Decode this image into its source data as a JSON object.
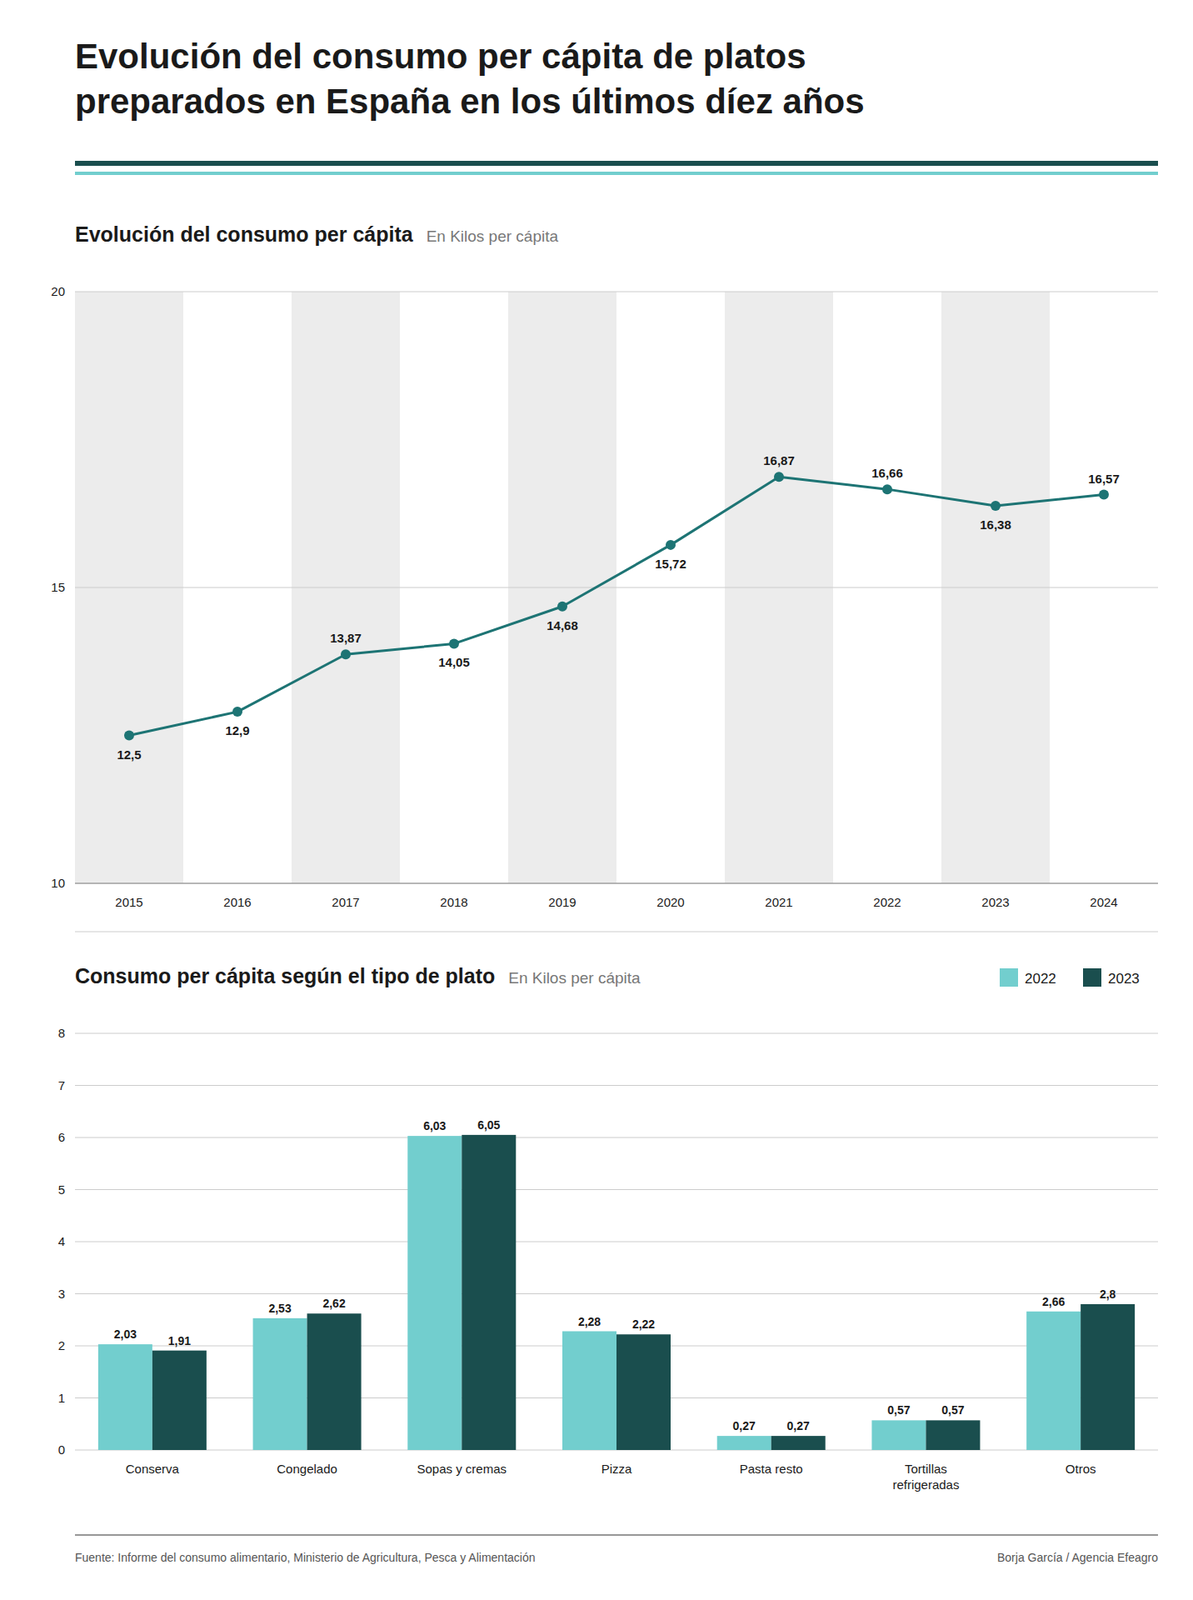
{
  "title": "Evolución del consumo per cápita de platos\npreparados en España en los últimos díez años",
  "annotations": [
    "Fuente: Informe del consumo alimentario, Ministerio de Agricultura, Pesca y Alimentación",
    "Borja García / Agencia Efeagro"
  ],
  "chart_data": [
    {
      "type": "line",
      "title": "Evolución del consumo per cápita",
      "subtitle": "En Kilos per cápita",
      "x": [
        2015,
        2016,
        2017,
        2018,
        2019,
        2020,
        2021,
        2022,
        2023,
        2024
      ],
      "values": [
        12.5,
        12.9,
        13.87,
        14.05,
        14.68,
        15.72,
        16.87,
        16.66,
        16.38,
        16.57
      ],
      "value_labels": [
        "12,5",
        "12,9",
        "13,87",
        "14,05",
        "14,68",
        "15,72",
        "16,87",
        "16,66",
        "16,38",
        "16,57"
      ],
      "color": "#1d7474",
      "marker": "circle",
      "data_labels": true,
      "xlim": [
        2014.5,
        2024.5
      ],
      "xticks": [
        2015,
        2016,
        2017,
        2018,
        2019,
        2020,
        2021,
        2022,
        2023,
        2024
      ],
      "ylim": [
        10,
        20
      ],
      "yticks": [
        10,
        15,
        20
      ],
      "grid": true
    },
    {
      "type": "bar",
      "title": "Consumo per cápita según el tipo de plato",
      "subtitle": "En Kilos per cápita",
      "categories": [
        "Conserva",
        "Congelado",
        "Sopas y cremas",
        "Pizza",
        "Pasta resto",
        "Tortillas\nrefrigeradas",
        "Otros"
      ],
      "series": [
        {
          "name": "2022",
          "color": "#72cece",
          "values": [
            2.03,
            2.53,
            6.03,
            2.28,
            0.27,
            0.57,
            2.66
          ],
          "value_labels": [
            "2,03",
            "2,53",
            "6,03",
            "2,28",
            "0,27",
            "0,57",
            "2,66"
          ]
        },
        {
          "name": "2023",
          "color": "#1a4e4e",
          "values": [
            1.91,
            2.62,
            6.05,
            2.22,
            0.27,
            0.57,
            2.8
          ],
          "value_labels": [
            "1,91",
            "2,62",
            "6,05",
            "2,22",
            "0,27",
            "0,57",
            "2,8"
          ]
        }
      ],
      "data_labels": true,
      "legend": "top-right",
      "ylim": [
        0,
        8
      ],
      "yticks": [
        0,
        1,
        2,
        3,
        4,
        5,
        6,
        7,
        8
      ],
      "grid": true
    }
  ]
}
